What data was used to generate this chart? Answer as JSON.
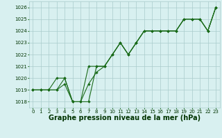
{
  "background_color": "#d8f0f0",
  "grid_color": "#aacccc",
  "line_color": "#1a6b1a",
  "marker_color": "#1a6b1a",
  "xlabel": "Graphe pression niveau de la mer (hPa)",
  "xlabel_fontsize": 7,
  "ylim": [
    1017.5,
    1026.5
  ],
  "xlim": [
    -0.5,
    23.5
  ],
  "yticks": [
    1018,
    1019,
    1020,
    1021,
    1022,
    1023,
    1024,
    1025,
    1026
  ],
  "xticks": [
    0,
    1,
    2,
    3,
    4,
    5,
    6,
    7,
    8,
    9,
    10,
    11,
    12,
    13,
    14,
    15,
    16,
    17,
    18,
    19,
    20,
    21,
    22,
    23
  ],
  "tick_fontsize": 5,
  "series": [
    [
      1019,
      1019,
      1019,
      1019,
      1020,
      1018,
      1018,
      1018,
      1021,
      1021,
      1022,
      1023,
      1022,
      1023,
      1024,
      1024,
      1024,
      1024,
      1024,
      1025,
      1025,
      1025,
      1024,
      1026
    ],
    [
      1019,
      1019,
      1019,
      1019,
      1019.5,
      1018,
      1018,
      1019.5,
      1020.5,
      1021,
      1022,
      1023,
      1022,
      1023,
      1024,
      1024,
      1024,
      1024,
      1024,
      1025,
      1025,
      1025,
      1024,
      1026
    ],
    [
      1019,
      1019,
      1019,
      1020,
      1020,
      1018,
      1018,
      1021,
      1021,
      1021,
      1022,
      1023,
      1022,
      1023,
      1024,
      1024,
      1024,
      1024,
      1024,
      1025,
      1025,
      1025,
      1024,
      1026
    ]
  ]
}
